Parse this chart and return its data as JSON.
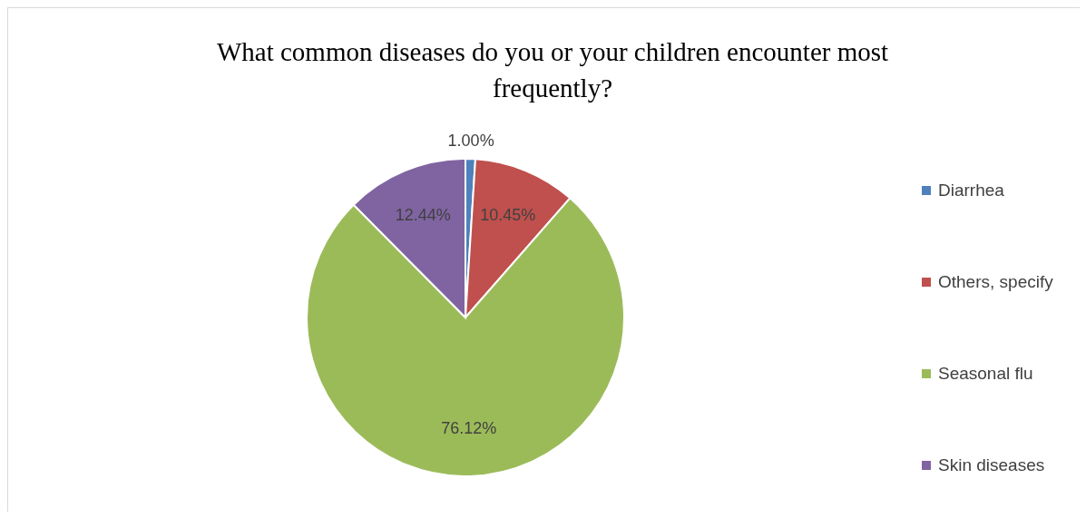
{
  "chart_data": {
    "type": "pie",
    "title": "What common diseases do you or your children encounter most frequently?",
    "categories": [
      "Diarrhea",
      "Others, specify",
      "Seasonal flu",
      "Skin diseases"
    ],
    "values": [
      1.0,
      10.45,
      76.12,
      12.44
    ],
    "value_labels": [
      "1.00%",
      "10.45%",
      "76.12%",
      "12.44%"
    ],
    "colors": [
      "#4f81bd",
      "#c0504d",
      "#9bbb59",
      "#8064a2"
    ],
    "legend": "right"
  }
}
